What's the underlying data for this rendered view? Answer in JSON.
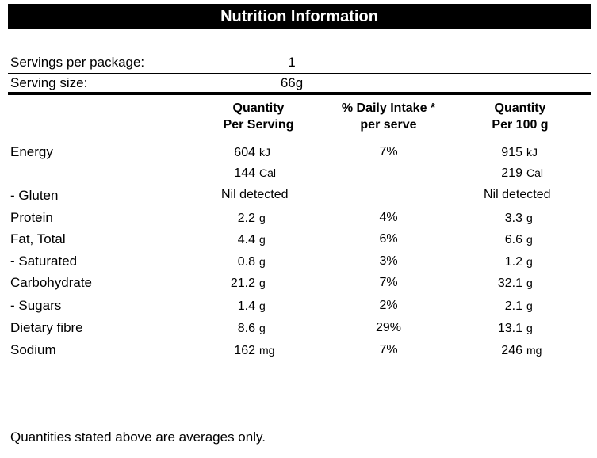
{
  "title": "Nutrition Information",
  "servings_per_package": {
    "label": "Servings per package:",
    "value": "1"
  },
  "serving_size": {
    "label": "Serving size:",
    "value": "66g"
  },
  "headers": {
    "per_serving": [
      "Quantity",
      "Per Serving"
    ],
    "daily_intake": [
      "% Daily Intake *",
      "per serve"
    ],
    "per_100g": [
      "Quantity",
      "Per 100 g"
    ]
  },
  "rows": [
    {
      "label": "Energy",
      "serving_value": "604",
      "serving_unit": "kJ",
      "daily_intake": "7%",
      "per100_value": "915",
      "per100_unit": "kJ"
    },
    {
      "label": "",
      "serving_value": "144",
      "serving_unit": "Cal",
      "daily_intake": "",
      "per100_value": "219",
      "per100_unit": "Cal"
    },
    {
      "label": "- Gluten",
      "serving_text": "Nil detected",
      "daily_intake": "",
      "per100_text": "Nil detected"
    },
    {
      "label": "Protein",
      "serving_value": "2.2",
      "serving_unit": "g",
      "daily_intake": "4%",
      "per100_value": "3.3",
      "per100_unit": "g"
    },
    {
      "label": "Fat, Total",
      "serving_value": "4.4",
      "serving_unit": "g",
      "daily_intake": "6%",
      "per100_value": "6.6",
      "per100_unit": "g"
    },
    {
      "label": "- Saturated",
      "serving_value": "0.8",
      "serving_unit": "g",
      "daily_intake": "3%",
      "per100_value": "1.2",
      "per100_unit": "g"
    },
    {
      "label": "Carbohydrate",
      "serving_value": "21.2",
      "serving_unit": "g",
      "daily_intake": "7%",
      "per100_value": "32.1",
      "per100_unit": "g"
    },
    {
      "label": "- Sugars",
      "serving_value": "1.4",
      "serving_unit": "g",
      "daily_intake": "2%",
      "per100_value": "2.1",
      "per100_unit": "g"
    },
    {
      "label": "Dietary fibre",
      "serving_value": "8.6",
      "serving_unit": "g",
      "daily_intake": "29%",
      "per100_value": "13.1",
      "per100_unit": "g"
    },
    {
      "label": "Sodium",
      "serving_value": "162",
      "serving_unit": "mg",
      "daily_intake": "7%",
      "per100_value": "246",
      "per100_unit": "mg"
    }
  ],
  "footer": "Quantities stated above are averages only."
}
